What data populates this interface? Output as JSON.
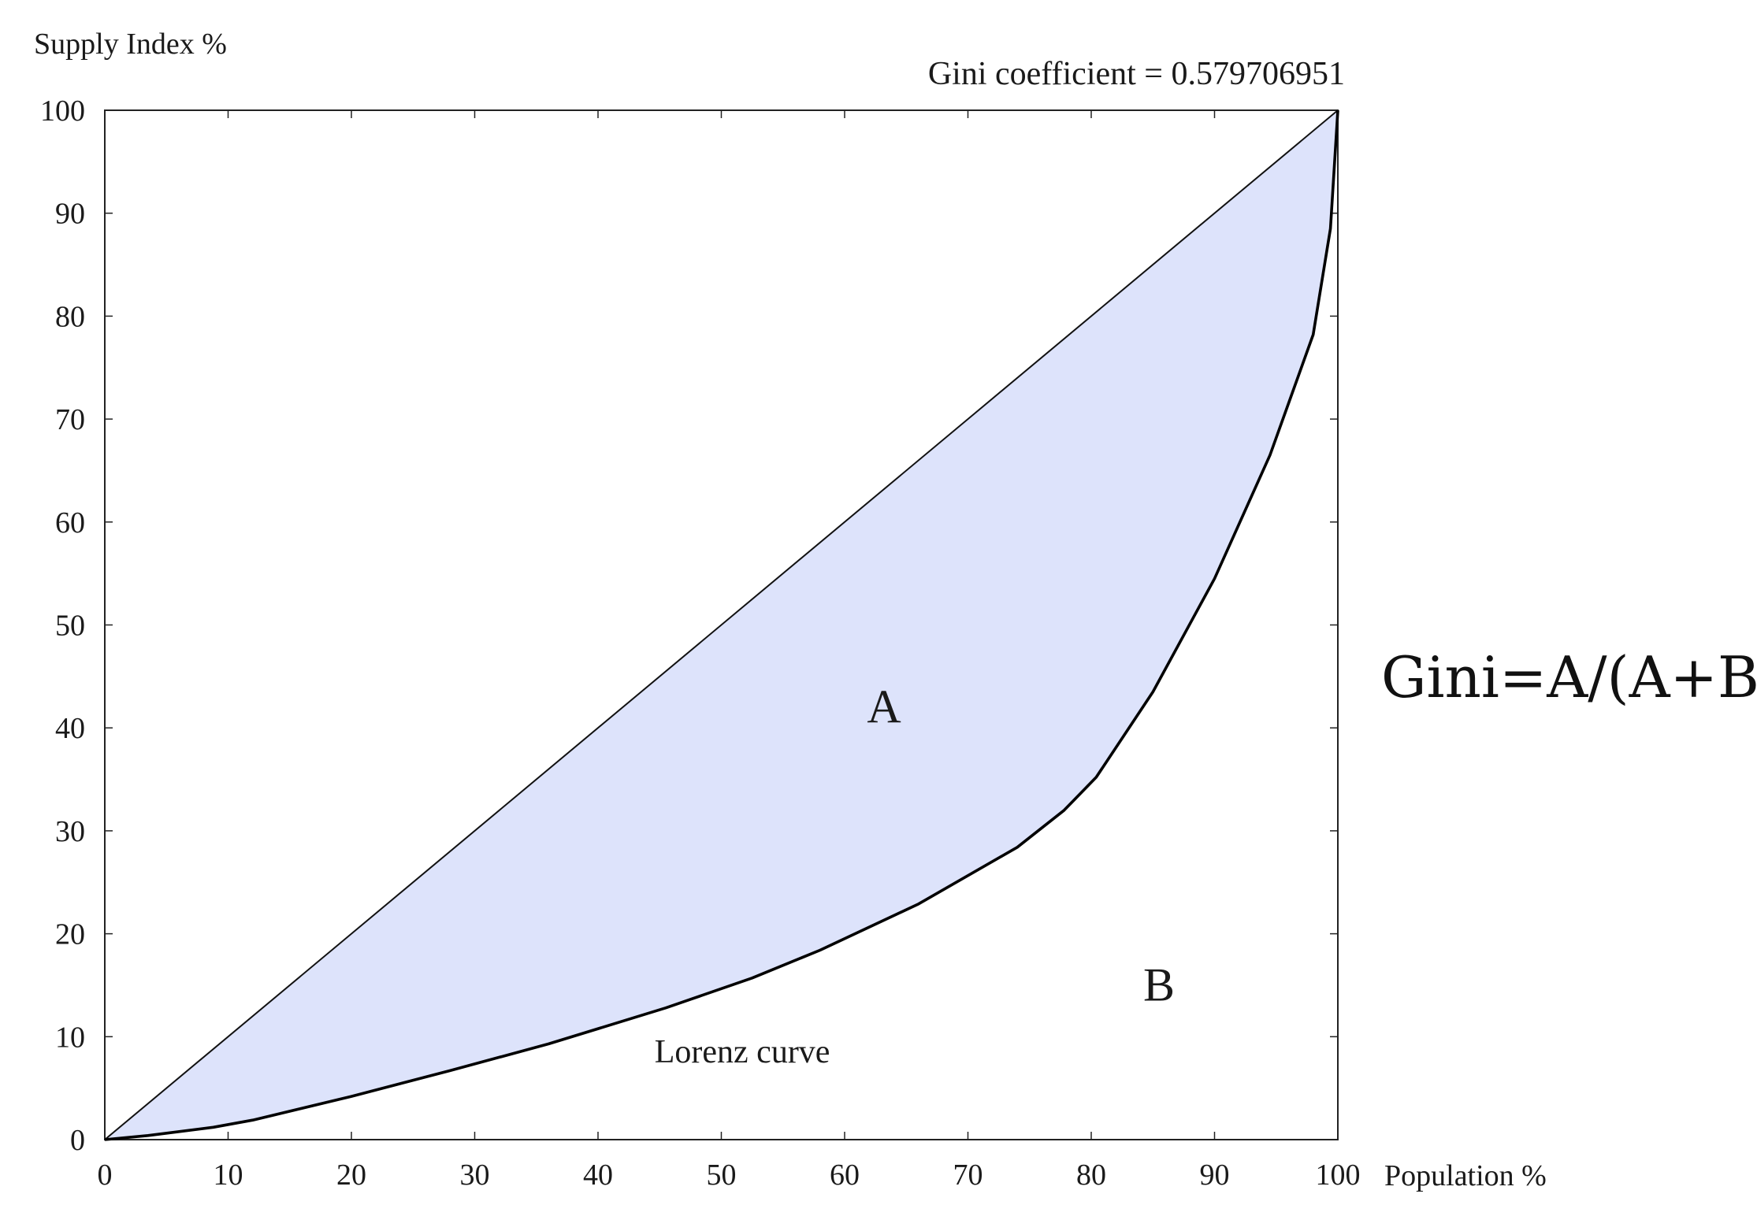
{
  "chart_data": {
    "type": "area",
    "title": "Gini coefficient = 0.579706951",
    "xlabel": "Population %",
    "ylabel": "Supply Index %",
    "xlim": [
      0,
      100
    ],
    "ylim": [
      0,
      100
    ],
    "x_ticks": [
      "0",
      "10",
      "20",
      "30",
      "40",
      "50",
      "60",
      "70",
      "80",
      "90",
      "100"
    ],
    "y_ticks": [
      "0",
      "10",
      "20",
      "30",
      "40",
      "50",
      "60",
      "70",
      "80",
      "90",
      "100"
    ],
    "grid": false,
    "series": [
      {
        "role": "equality-line",
        "x": [
          0,
          100
        ],
        "y": [
          0,
          100
        ]
      },
      {
        "name": "Lorenz curve",
        "x": [
          0,
          3.5,
          8.8,
          12.0,
          20.0,
          28.0,
          36.0,
          45.5,
          52.5,
          58.0,
          66.0,
          74.0,
          77.8,
          80.4,
          85.0,
          90.0,
          94.5,
          98.0,
          99.4,
          100
        ],
        "y": [
          0,
          0.4,
          1.2,
          1.9,
          4.2,
          6.7,
          9.3,
          12.8,
          15.7,
          18.4,
          22.9,
          28.4,
          32.0,
          35.2,
          43.5,
          54.5,
          66.5,
          78.2,
          88.5,
          100
        ]
      }
    ],
    "fill_between_color": "#dde3fb",
    "annotations": {
      "region_a": "A",
      "region_b": "B",
      "curve_label": "Lorenz curve",
      "formula": "Gini=A/(A+B)"
    }
  }
}
